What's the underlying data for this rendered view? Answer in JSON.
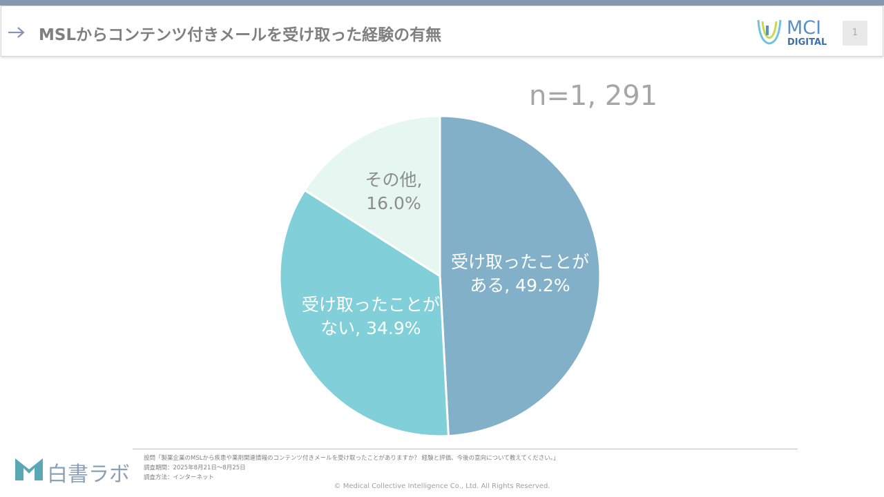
{
  "header": {
    "title": "MSLからコンテンツ付きメールを受け取った経験の有無",
    "logo_main": "MCI",
    "logo_sub": "DIGITAL",
    "page_number": "1"
  },
  "chart_data": {
    "type": "pie",
    "annotation": "n=1, 291",
    "values": [
      49.2,
      34.9,
      16.0
    ],
    "value_labels": [
      "受け取ったことがある, 49.2%",
      "受け取ったことがない, 34.9%",
      "その他, 16.0%"
    ],
    "colors": [
      "#82b0c9",
      "#80cfd9",
      "#e6f6f1"
    ],
    "label_colors": [
      "#ffffff",
      "#ffffff",
      "#8c8c8c"
    ]
  },
  "footer": {
    "brand": "白書ラボ",
    "notes": [
      "設問「製薬企業のMSLから疾患や薬剤関連情報のコンテンツ付きメールを受け取ったことがありますか？ 経験と評価、今後の意向について教えてください。」",
      "調査期間：2025年8月21日～8月25日",
      "調査方法：インターネット"
    ],
    "copyright": "© Medical Collective Intelligence Co., Ltd. All Rights Reserved."
  }
}
